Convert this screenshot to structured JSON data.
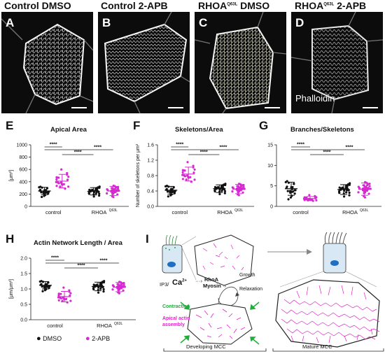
{
  "microscopy": {
    "panels": [
      {
        "letter": "A",
        "title": "Control DMSO"
      },
      {
        "letter": "B",
        "title": "Control 2-APB"
      },
      {
        "letter": "C",
        "title": "RHOA",
        "title_sup": "Q63L",
        "title_suffix": " DMSO"
      },
      {
        "letter": "D",
        "title": "RHOA",
        "title_sup": "Q63L",
        "title_suffix": " 2-APB"
      }
    ],
    "stain_label": "Phalloidin"
  },
  "charts": {
    "E": {
      "letter": "E",
      "title": "Apical Area",
      "ylabel": "[μm²]",
      "yticks": [
        "0",
        "200",
        "400",
        "600",
        "800",
        "1000"
      ],
      "ylim": [
        0,
        1000
      ],
      "sig": [
        "****",
        "****",
        "****"
      ],
      "xlabels": [
        "control",
        "RHOA"
      ],
      "xlabel_sup": "Q63L"
    },
    "F": {
      "letter": "F",
      "title": "Skeletons/Area",
      "ylabel": "Number of skeletons per μm²",
      "yticks": [
        "0.0",
        "0.4",
        "0.8",
        "1.2",
        "1.6"
      ],
      "ylim": [
        0,
        1.6
      ],
      "sig": [
        "****",
        "****",
        "****"
      ],
      "xlabels": [
        "control",
        "RHOA"
      ],
      "xlabel_sup": "Q63L"
    },
    "G": {
      "letter": "G",
      "title": "Branches/Skeletons",
      "ylabel": "",
      "yticks": [
        "0",
        "5",
        "10",
        "15"
      ],
      "ylim": [
        0,
        15
      ],
      "sig": [
        "****",
        "****",
        "****"
      ],
      "xlabels": [
        "control",
        "RHOA"
      ],
      "xlabel_sup": "Q63L"
    },
    "H": {
      "letter": "H",
      "title": "Actin Network Length / Area",
      "ylabel": "[μm/μm²]",
      "yticks": [
        "0.0",
        "0.5",
        "1.0",
        "1.5",
        "2.0"
      ],
      "ylim": [
        0,
        2.0
      ],
      "sig": [
        "****",
        "****",
        "****"
      ],
      "xlabels": [
        "control",
        "RHOA"
      ],
      "xlabel_sup": "Q63L"
    }
  },
  "chart_data": [
    {
      "type": "scatter",
      "title": "Apical Area",
      "ylabel": "[μm²]",
      "ylim": [
        0,
        1000
      ],
      "categories": [
        "control DMSO",
        "control 2-APB",
        "RHOA Q63L DMSO",
        "RHOA Q63L 2-APB"
      ],
      "series": [
        {
          "name": "DMSO",
          "color": "#111111",
          "group": "control",
          "mean": 250,
          "sd": 60,
          "n": 22
        },
        {
          "name": "2-APB",
          "color": "#d42ad0",
          "group": "control",
          "mean": 410,
          "sd": 110,
          "n": 20
        },
        {
          "name": "DMSO",
          "color": "#111111",
          "group": "RHOA Q63L",
          "mean": 245,
          "sd": 60,
          "n": 30
        },
        {
          "name": "2-APB",
          "color": "#d42ad0",
          "group": "RHOA Q63L",
          "mean": 250,
          "sd": 75,
          "n": 30
        }
      ]
    },
    {
      "type": "scatter",
      "title": "Skeletons/Area",
      "ylabel": "Number of skeletons per μm²",
      "ylim": [
        0,
        1.6
      ],
      "categories": [
        "control DMSO",
        "control 2-APB",
        "RHOA Q63L DMSO",
        "RHOA Q63L 2-APB"
      ],
      "series": [
        {
          "name": "DMSO",
          "color": "#111111",
          "group": "control",
          "mean": 0.42,
          "sd": 0.1,
          "n": 22
        },
        {
          "name": "2-APB",
          "color": "#d42ad0",
          "group": "control",
          "mean": 0.84,
          "sd": 0.18,
          "n": 20
        },
        {
          "name": "DMSO",
          "color": "#111111",
          "group": "RHOA Q63L",
          "mean": 0.46,
          "sd": 0.1,
          "n": 30
        },
        {
          "name": "2-APB",
          "color": "#d42ad0",
          "group": "RHOA Q63L",
          "mean": 0.45,
          "sd": 0.12,
          "n": 30
        }
      ]
    },
    {
      "type": "scatter",
      "title": "Branches/Skeletons",
      "ylim": [
        0,
        15
      ],
      "categories": [
        "control DMSO",
        "control 2-APB",
        "RHOA Q63L DMSO",
        "RHOA Q63L 2-APB"
      ],
      "series": [
        {
          "name": "DMSO",
          "color": "#111111",
          "group": "control",
          "mean": 4.3,
          "sd": 1.6,
          "n": 22
        },
        {
          "name": "2-APB",
          "color": "#d42ad0",
          "group": "control",
          "mean": 1.9,
          "sd": 0.5,
          "n": 20
        },
        {
          "name": "DMSO",
          "color": "#111111",
          "group": "RHOA Q63L",
          "mean": 4.1,
          "sd": 1.2,
          "n": 30
        },
        {
          "name": "2-APB",
          "color": "#d42ad0",
          "group": "RHOA Q63L",
          "mean": 4.2,
          "sd": 1.5,
          "n": 30
        }
      ]
    },
    {
      "type": "scatter",
      "title": "Actin Network Length / Area",
      "ylabel": "[μm/μm²]",
      "ylim": [
        0,
        2.0
      ],
      "categories": [
        "control DMSO",
        "control 2-APB",
        "RHOA Q63L DMSO",
        "RHOA Q63L 2-APB"
      ],
      "series": [
        {
          "name": "DMSO",
          "color": "#111111",
          "group": "control",
          "mean": 1.12,
          "sd": 0.12,
          "n": 22
        },
        {
          "name": "2-APB",
          "color": "#d42ad0",
          "group": "control",
          "mean": 0.75,
          "sd": 0.17,
          "n": 20
        },
        {
          "name": "DMSO",
          "color": "#111111",
          "group": "RHOA Q63L",
          "mean": 1.08,
          "sd": 0.14,
          "n": 30
        },
        {
          "name": "2-APB",
          "color": "#d42ad0",
          "group": "RHOA Q63L",
          "mean": 1.06,
          "sd": 0.15,
          "n": 30
        }
      ]
    }
  ],
  "legend": {
    "dmso_label": "DMSO",
    "apb_label": "2-APB",
    "dmso_color": "#111111",
    "apb_color": "#d42ad0"
  },
  "diagram": {
    "letter": "I",
    "ip3": "IP3/",
    "ca": "Ca",
    "ca_sup": "2+",
    "rhoa": "RhoA",
    "myosin": "Myosin",
    "growth": "Growth",
    "relaxation": "Relaxation",
    "contraction": "Contraction",
    "assembly_line1": "Apical actin",
    "assembly_line2": "assembly",
    "developing": "Developing MCC",
    "mature": "Mature MCC",
    "contraction_color": "#1fae3c",
    "assembly_color": "#e020c8"
  }
}
